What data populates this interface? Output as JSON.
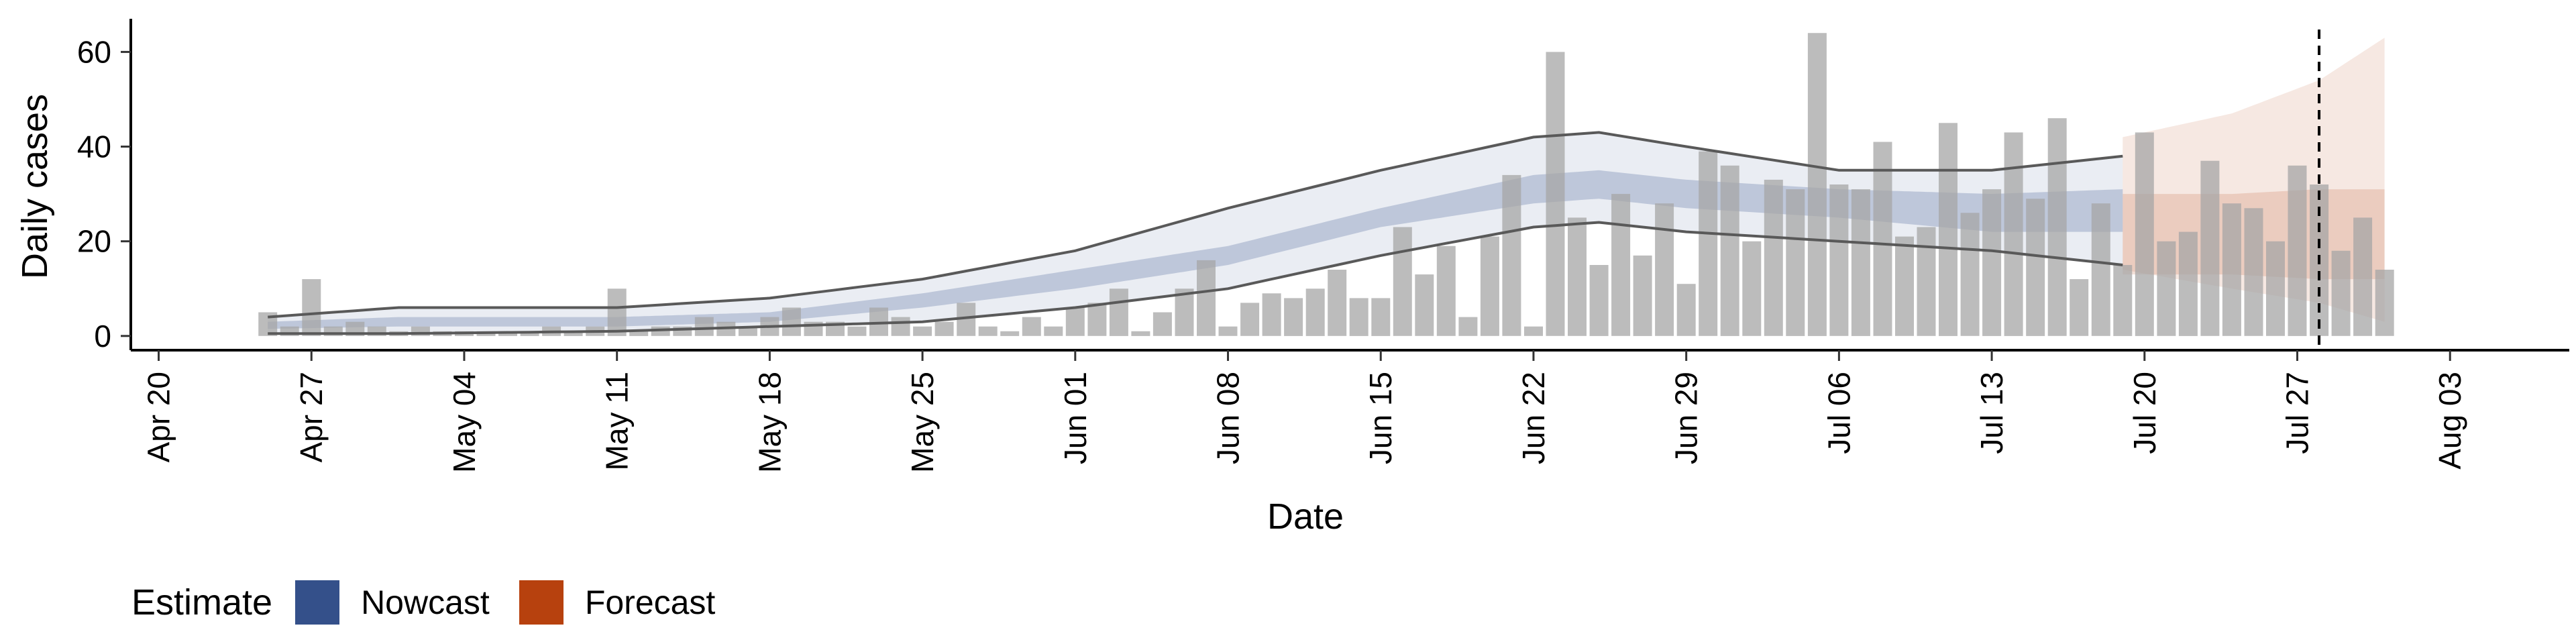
{
  "chart_data": {
    "type": "bar",
    "xlabel": "Date",
    "ylabel": "Daily cases",
    "ylim": [
      -3,
      67
    ],
    "yticks": [
      0,
      20,
      40,
      60
    ],
    "xlim": [
      "2020-04-19",
      "2020-08-06"
    ],
    "xticks": [
      {
        "date": "2020-04-20",
        "label": "Apr 20"
      },
      {
        "date": "2020-04-27",
        "label": "Apr 27"
      },
      {
        "date": "2020-05-04",
        "label": "May 04"
      },
      {
        "date": "2020-05-11",
        "label": "May 11"
      },
      {
        "date": "2020-05-18",
        "label": "May 18"
      },
      {
        "date": "2020-05-25",
        "label": "May 25"
      },
      {
        "date": "2020-06-01",
        "label": "Jun 01"
      },
      {
        "date": "2020-06-08",
        "label": "Jun 08"
      },
      {
        "date": "2020-06-15",
        "label": "Jun 15"
      },
      {
        "date": "2020-06-22",
        "label": "Jun 22"
      },
      {
        "date": "2020-06-29",
        "label": "Jun 29"
      },
      {
        "date": "2020-07-06",
        "label": "Jul 06"
      },
      {
        "date": "2020-07-13",
        "label": "Jul 13"
      },
      {
        "date": "2020-07-20",
        "label": "Jul 20"
      },
      {
        "date": "2020-07-27",
        "label": "Jul 27"
      },
      {
        "date": "2020-08-03",
        "label": "Aug 03"
      }
    ],
    "bars": {
      "start_date": "2020-04-25",
      "values": [
        5,
        2,
        12,
        2,
        3,
        2,
        1,
        2,
        1,
        1,
        1,
        1,
        1,
        2,
        1,
        2,
        10,
        1,
        2,
        2,
        4,
        3,
        2,
        4,
        6,
        3,
        3,
        2,
        6,
        4,
        2,
        3,
        7,
        2,
        1,
        4,
        2,
        6,
        7,
        10,
        1,
        5,
        10,
        16,
        2,
        7,
        9,
        8,
        10,
        14,
        8,
        8,
        23,
        13,
        19,
        4,
        21,
        34,
        2,
        60,
        25,
        15,
        30,
        17,
        28,
        11,
        39,
        36,
        20,
        33,
        31,
        64,
        32,
        31,
        41,
        21,
        23,
        45,
        26,
        31,
        43,
        29,
        46,
        12,
        28,
        15,
        43,
        20,
        22,
        37,
        28,
        27,
        20,
        36,
        32,
        18,
        25,
        14
      ],
      "color": "#a6a6a6"
    },
    "legend": {
      "title": "Estimate",
      "entries": [
        {
          "label": "Nowcast",
          "color": "#34508a"
        },
        {
          "label": "Forecast",
          "color": "#b7410e"
        }
      ]
    },
    "nowcast": {
      "start_date": "2020-04-25",
      "end_date": "2020-07-19",
      "color": "#34508a",
      "knots": [
        {
          "date": "2020-04-25",
          "low90": 0.5,
          "low50": 1.5,
          "median": 2,
          "high50": 3,
          "high90": 4
        },
        {
          "date": "2020-05-01",
          "low90": 0.5,
          "low50": 2,
          "median": 3,
          "high50": 4,
          "high90": 6
        },
        {
          "date": "2020-05-11",
          "low90": 1,
          "low50": 2,
          "median": 3,
          "high50": 4,
          "high90": 6
        },
        {
          "date": "2020-05-18",
          "low90": 2,
          "low50": 3,
          "median": 4.5,
          "high50": 5,
          "high90": 8
        },
        {
          "date": "2020-05-25",
          "low90": 3,
          "low50": 6,
          "median": 7,
          "high50": 9,
          "high90": 12
        },
        {
          "date": "2020-06-01",
          "low90": 6,
          "low50": 10,
          "median": 12,
          "high50": 14,
          "high90": 18
        },
        {
          "date": "2020-06-08",
          "low90": 10,
          "low50": 15,
          "median": 17,
          "high50": 19,
          "high90": 27
        },
        {
          "date": "2020-06-15",
          "low90": 17,
          "low50": 23,
          "median": 25,
          "high50": 27,
          "high90": 35
        },
        {
          "date": "2020-06-22",
          "low90": 23,
          "low50": 28,
          "median": 31,
          "high50": 34,
          "high90": 42
        },
        {
          "date": "2020-06-25",
          "low90": 24,
          "low50": 29,
          "median": 32,
          "high50": 35,
          "high90": 43
        },
        {
          "date": "2020-06-29",
          "low90": 22,
          "low50": 27,
          "median": 30,
          "high50": 33,
          "high90": 40
        },
        {
          "date": "2020-07-06",
          "low90": 20,
          "low50": 25,
          "median": 27,
          "high50": 31,
          "high90": 35
        },
        {
          "date": "2020-07-13",
          "low90": 18,
          "low50": 22,
          "median": 26,
          "high50": 30,
          "high90": 35
        },
        {
          "date": "2020-07-19",
          "low90": 15,
          "low50": 22,
          "median": 27,
          "high50": 31,
          "high90": 38
        }
      ]
    },
    "forecast": {
      "start_date": "2020-07-19",
      "end_date": "2020-07-31",
      "color": "#b7410e",
      "knots": [
        {
          "date": "2020-07-19",
          "low90": 14,
          "low50": 13,
          "median": 21,
          "high50": 30,
          "high90": 42
        },
        {
          "date": "2020-07-24",
          "low90": 10,
          "low50": 13,
          "median": 21,
          "high50": 30,
          "high90": 47
        },
        {
          "date": "2020-07-28",
          "low90": 7,
          "low50": 12,
          "median": 21,
          "high50": 31,
          "high90": 54
        },
        {
          "date": "2020-07-31",
          "low90": 3,
          "low50": 12,
          "median": 21,
          "high50": 31,
          "high90": 63
        }
      ]
    },
    "reference_line_date": "2020-07-28"
  }
}
